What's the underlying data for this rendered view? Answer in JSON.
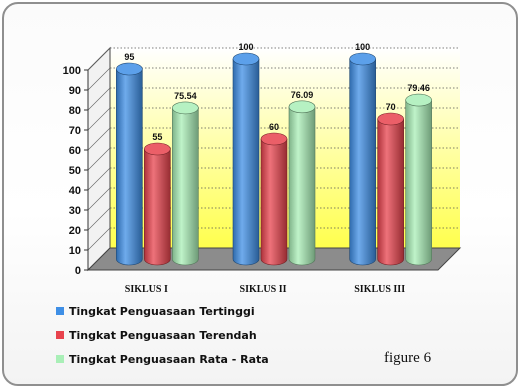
{
  "chart_data": {
    "type": "bar",
    "categories": [
      "SIKLUS I",
      "SIKLUS II",
      "SIKLUS III"
    ],
    "series": [
      {
        "name": "Tingkat Penguasaan Tertinggi",
        "values": [
          95,
          100,
          100
        ],
        "labels": [
          "95",
          "100",
          "100"
        ],
        "color": "#3f8fe6"
      },
      {
        "name": "Tingkat Penguasaan Terendah",
        "values": [
          55,
          60,
          70
        ],
        "labels": [
          "55",
          "60",
          "70"
        ],
        "color": "#e8434d"
      },
      {
        "name": "Tingkat Penguasaan Rata - Rata",
        "values": [
          75.54,
          76.09,
          79.46
        ],
        "labels": [
          "75.54",
          "76.09",
          "79.46"
        ],
        "color": "#a9efb7"
      }
    ],
    "yticks": [
      "0",
      "10",
      "20",
      "30",
      "40",
      "50",
      "60",
      "70",
      "80",
      "90",
      "100"
    ],
    "ylim": [
      0,
      100
    ],
    "grid": true,
    "legend_position": "bottom-left",
    "wall_color": "#ffff4d",
    "floor_color": "#8c8c8c"
  },
  "caption": "figure 6"
}
